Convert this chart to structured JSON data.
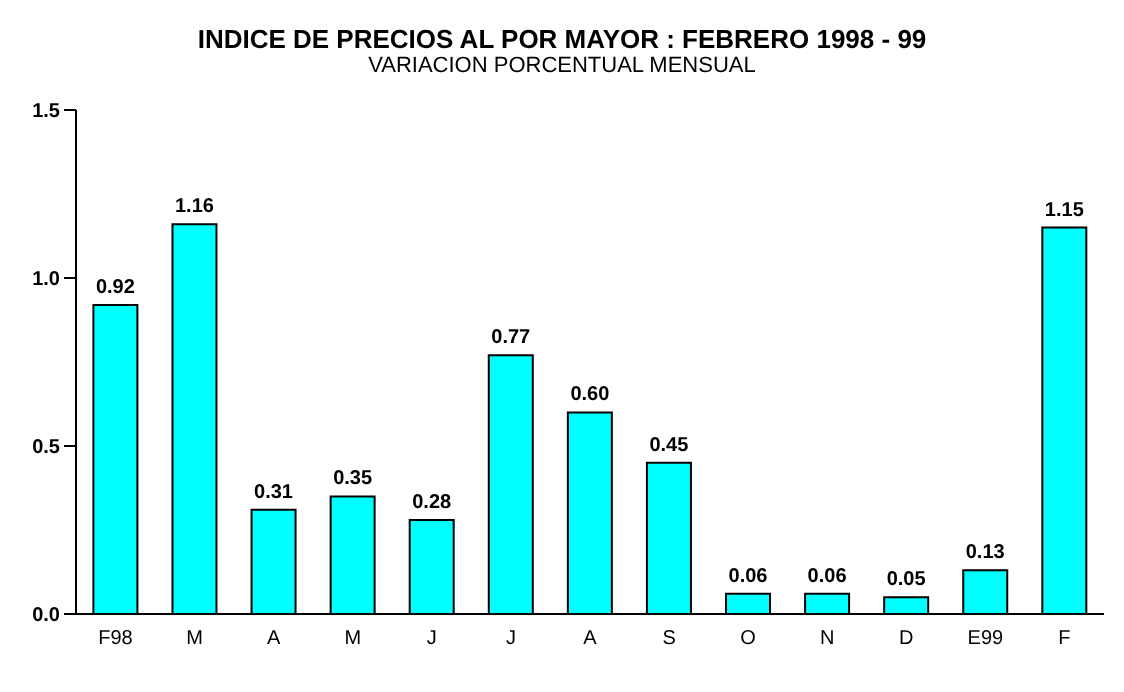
{
  "chart_data": {
    "type": "bar",
    "title": "INDICE DE PRECIOS AL POR MAYOR : FEBRERO 1998 - 99",
    "subtitle": "VARIACION PORCENTUAL MENSUAL",
    "categories": [
      "F98",
      "M",
      "A",
      "M",
      "J",
      "J",
      "A",
      "S",
      "O",
      "N",
      "D",
      "E99",
      "F"
    ],
    "values": [
      0.92,
      1.16,
      0.31,
      0.35,
      0.28,
      0.77,
      0.6,
      0.45,
      0.06,
      0.06,
      0.05,
      0.13,
      1.15
    ],
    "value_labels": [
      "0.92",
      "1.16",
      "0.31",
      "0.35",
      "0.28",
      "0.77",
      "0.60",
      "0.45",
      "0.06",
      "0.06",
      "0.05",
      "0.13",
      "1.15"
    ],
    "color": "#00ffff",
    "ylim": [
      0,
      1.5
    ],
    "yticks": [
      {
        "value": 0,
        "label": "0.0"
      },
      {
        "value": 0.5,
        "label": "0.5"
      },
      {
        "value": 1,
        "label": "1.0"
      },
      {
        "value": 1.5,
        "label": "1.5"
      }
    ],
    "grid": false
  }
}
